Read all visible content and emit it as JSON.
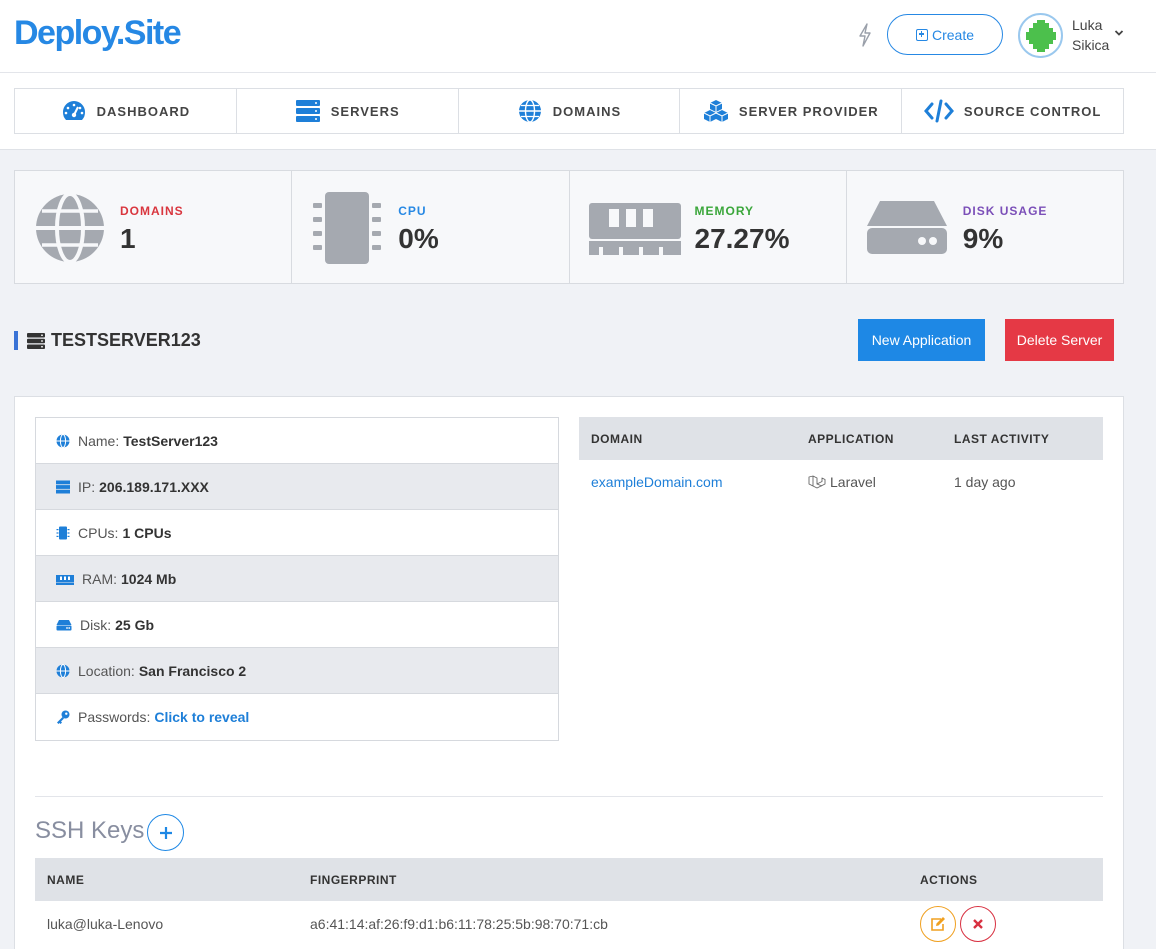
{
  "header": {
    "logo": "Deploy.Site",
    "create_label": "Create",
    "user_first": "Luka",
    "user_last": "Sikica",
    "bolt_icon": "bolt-icon",
    "accent_color": "#2688e4"
  },
  "nav": {
    "items": [
      {
        "label": "DASHBOARD",
        "icon": "dashboard-icon"
      },
      {
        "label": "SERVERS",
        "icon": "servers-icon"
      },
      {
        "label": "DOMAINS",
        "icon": "globe-icon"
      },
      {
        "label": "SERVER PROVIDER",
        "icon": "cubes-icon"
      },
      {
        "label": "SOURCE CONTROL",
        "icon": "code-icon"
      }
    ]
  },
  "stats": [
    {
      "label": "DOMAINS",
      "value": "1",
      "color": "#d9363e",
      "icon": "globe-icon"
    },
    {
      "label": "CPU",
      "value": "0%",
      "color": "#2688e4",
      "icon": "cpu-icon"
    },
    {
      "label": "MEMORY",
      "value": "27.27%",
      "color": "#3aa63a",
      "icon": "memory-icon"
    },
    {
      "label": "DISK USAGE",
      "value": "9%",
      "color": "#7b4fb8",
      "icon": "disk-icon"
    }
  ],
  "server": {
    "name": "TESTSERVER123",
    "new_app_label": "New Application",
    "delete_label": "Delete Server",
    "info": [
      {
        "label": "Name:",
        "value": "TestServer123",
        "icon": "globe-icon"
      },
      {
        "label": "IP:",
        "value": "206.189.171.XXX",
        "icon": "server-icon"
      },
      {
        "label": "CPUs:",
        "value": "1 CPUs",
        "icon": "cpu-icon"
      },
      {
        "label": "RAM:",
        "value": "1024 Mb",
        "icon": "memory-icon"
      },
      {
        "label": "Disk:",
        "value": "25 Gb",
        "icon": "disk-icon"
      },
      {
        "label": "Location:",
        "value": "San Francisco 2",
        "icon": "globe-icon"
      },
      {
        "label": "Passwords:",
        "value": "Click to reveal",
        "icon": "key-icon"
      }
    ]
  },
  "domains_table": {
    "headers": [
      "DOMAIN",
      "APPLICATION",
      "LAST ACTIVITY"
    ],
    "rows": [
      {
        "domain": "exampleDomain.com",
        "application": "Laravel",
        "last_activity": "1 day ago"
      }
    ]
  },
  "ssh": {
    "title": "SSH Keys",
    "headers": [
      "NAME",
      "FINGERPRINT",
      "ACTIONS"
    ],
    "rows": [
      {
        "name": "luka@luka-Lenovo",
        "fingerprint": "a6:41:14:af:26:f9:d1:b6:11:78:25:5b:98:70:71:cb"
      }
    ]
  }
}
